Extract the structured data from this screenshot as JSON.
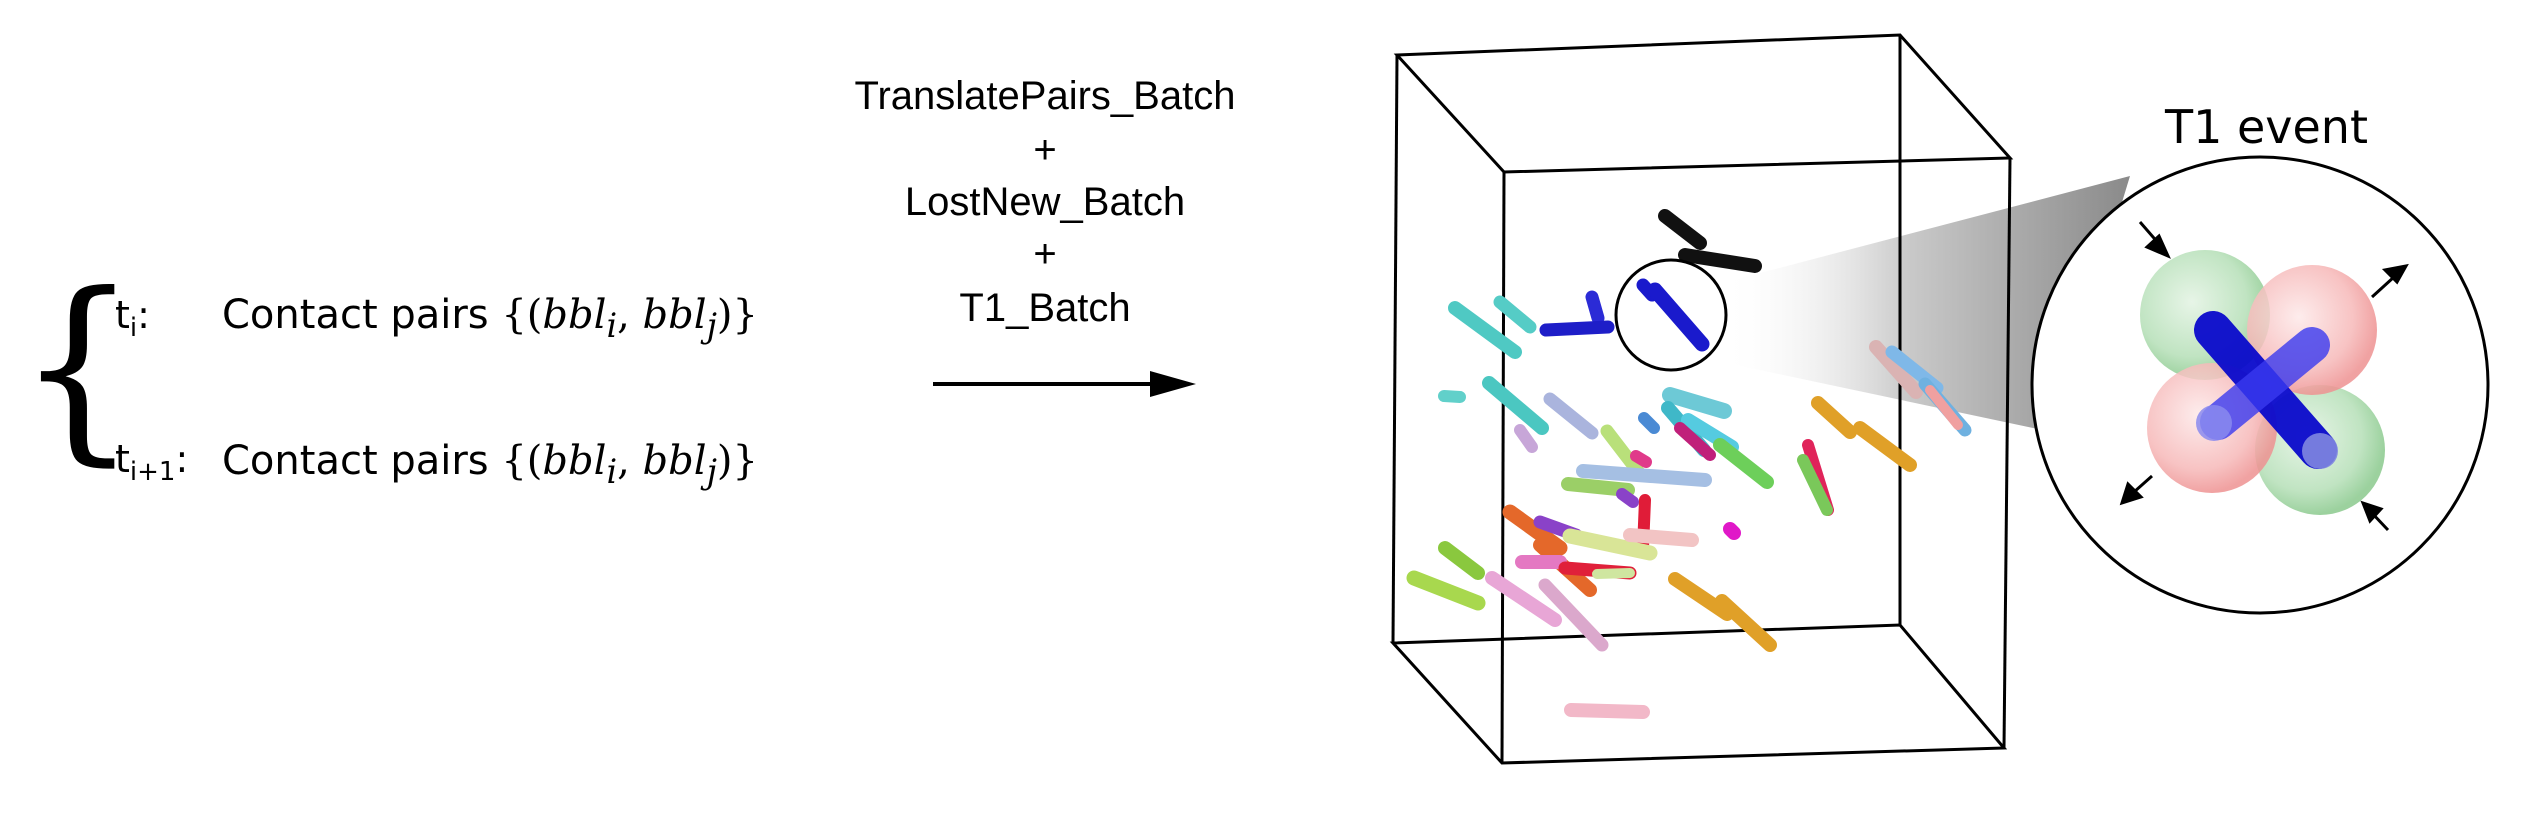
{
  "left_panel": {
    "brace": "{",
    "rows": [
      {
        "time_base": "t",
        "time_sub": "i",
        "time_suffix": ":",
        "label": "Contact pairs",
        "math_open": "{(",
        "bbl": "bbl",
        "sub_i": "i",
        "comma": ",",
        "sub_j": "j",
        "math_close": ")}"
      },
      {
        "time_base": "t",
        "time_sub": "i+1",
        "time_suffix": ":",
        "label": "Contact pairs",
        "math_open": "{(",
        "bbl": "bbl",
        "sub_i": "i",
        "comma": ",",
        "sub_j": "j",
        "math_close": ")}"
      }
    ]
  },
  "pipeline": {
    "steps": [
      "TranslatePairs_Batch",
      "+",
      "LostNew_Batch",
      "+",
      "T1_Batch"
    ]
  },
  "inset": {
    "title": "T1 event",
    "colors": {
      "green_sphere": "#6fbf73",
      "red_sphere": "#f08080",
      "rod_blue": "#0a0ad0"
    }
  },
  "colors": {
    "rod_black": "#111111",
    "rod_blue": "#1a1acc",
    "cone": "#8c8c8c"
  }
}
